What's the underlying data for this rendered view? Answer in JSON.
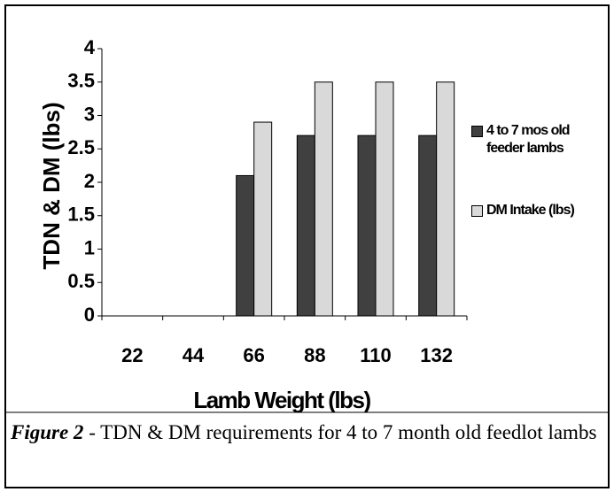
{
  "chart_data": {
    "type": "bar",
    "y_label": "TDN & DM (lbs)",
    "x_label": "Lamb Weight (lbs)",
    "categories": [
      22,
      44,
      66,
      88,
      110,
      132
    ],
    "series": [
      {
        "name": "4 to 7 mos old feeder lambs",
        "color": "#404040",
        "values": [
          null,
          null,
          2.1,
          2.7,
          2.7,
          2.7
        ]
      },
      {
        "name": "DM Intake (lbs)",
        "color": "#d9d9d9",
        "values": [
          null,
          null,
          2.9,
          3.5,
          3.5,
          3.5
        ]
      }
    ],
    "ylim": [
      0,
      4
    ],
    "yticks": [
      0,
      0.5,
      1,
      1.5,
      2,
      2.5,
      3,
      3.5,
      4
    ],
    "legend": "right"
  },
  "caption": {
    "label": "Figure 2",
    "text": "- TDN & DM requirements for 4 to 7 month old feedlot lambs"
  }
}
